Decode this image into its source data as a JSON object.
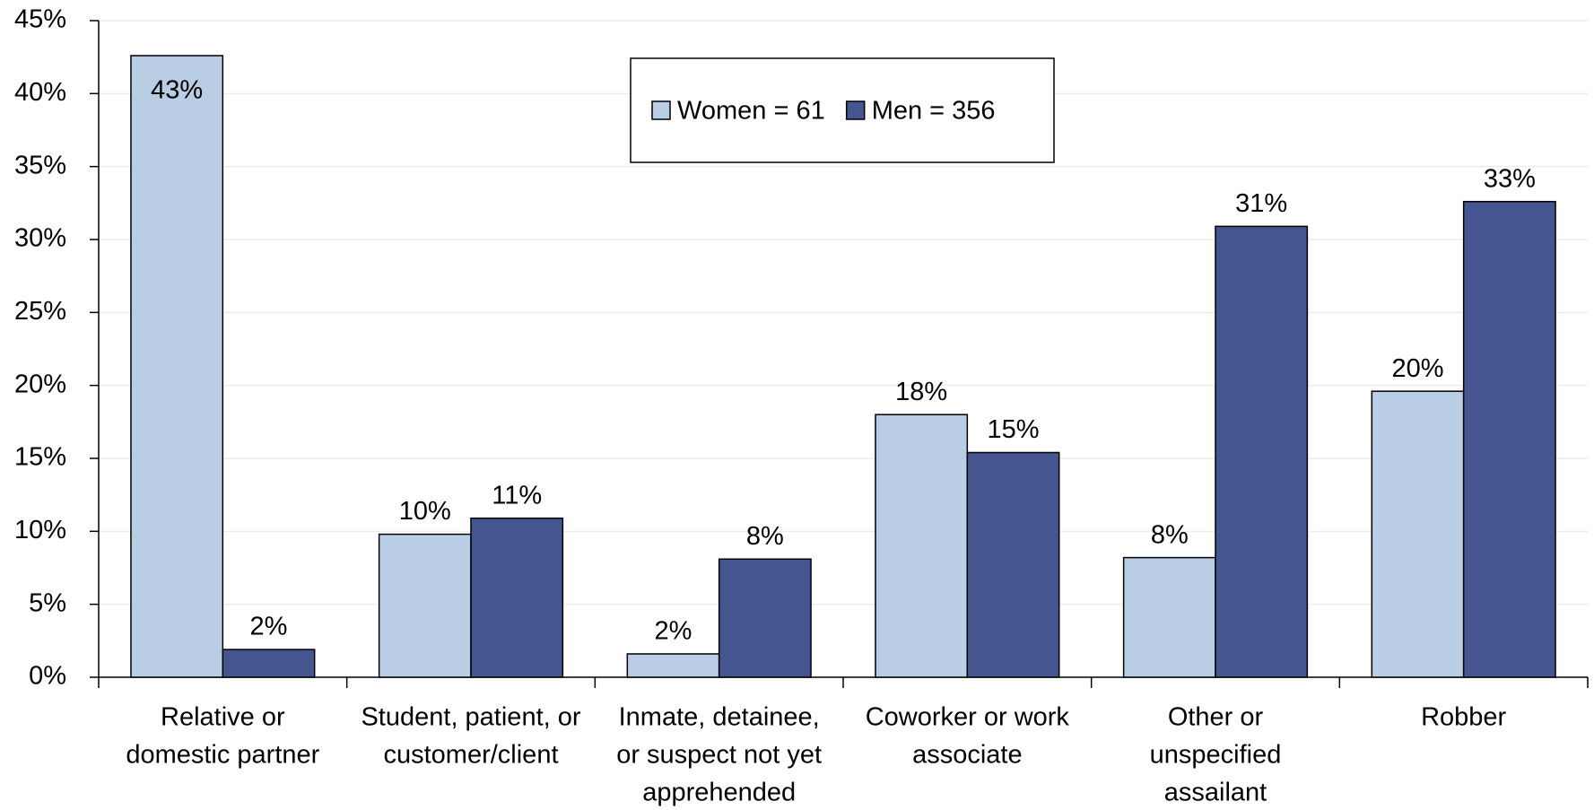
{
  "chart_data": {
    "type": "bar",
    "categories": [
      [
        "Relative or",
        "domestic partner"
      ],
      [
        "Student, patient, or",
        "customer/client"
      ],
      [
        "Inmate, detainee,",
        "or suspect not yet",
        "apprehended"
      ],
      [
        "Coworker or work",
        "associate"
      ],
      [
        "Other or",
        "unspecified",
        "assailant"
      ],
      [
        "Robber"
      ]
    ],
    "series": [
      {
        "name": "Women = 61",
        "color": "#b9cde5",
        "values": [
          42.6,
          9.8,
          1.6,
          18.0,
          8.2,
          19.6
        ],
        "value_labels": [
          "43%",
          "10%",
          "2%",
          "18%",
          "8%",
          "20%"
        ]
      },
      {
        "name": "Men = 356",
        "color": "#44558f",
        "values": [
          1.9,
          10.9,
          8.1,
          15.4,
          30.9,
          32.6
        ],
        "value_labels": [
          "2%",
          "11%",
          "8%",
          "15%",
          "31%",
          "33%"
        ]
      }
    ],
    "ylim": [
      0,
      45
    ],
    "yticks": [
      {
        "value": 0,
        "label": "0%"
      },
      {
        "value": 5,
        "label": "5%"
      },
      {
        "value": 10,
        "label": "10%"
      },
      {
        "value": 15,
        "label": "15%"
      },
      {
        "value": 20,
        "label": "20%"
      },
      {
        "value": 25,
        "label": "25%"
      },
      {
        "value": 30,
        "label": "30%"
      },
      {
        "value": 35,
        "label": "35%"
      },
      {
        "value": 40,
        "label": "40%"
      },
      {
        "value": 45,
        "label": "45%"
      }
    ],
    "grid": true,
    "legend": "top"
  }
}
